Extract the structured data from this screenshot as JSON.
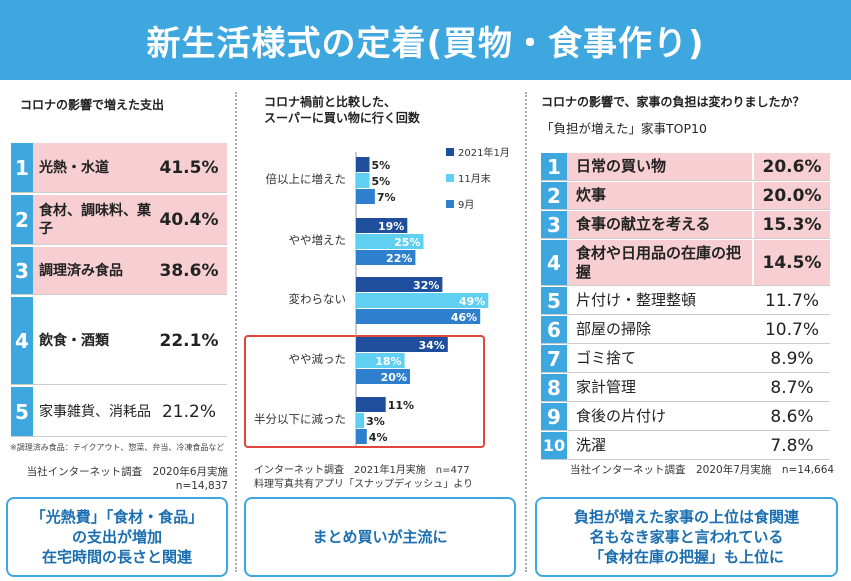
{
  "title": "新生活様式の定着(買物・食事作り)",
  "left": {
    "heading": "コロナの影響で増えた支出",
    "items": [
      {
        "rank": "1",
        "label": "光熱・水道",
        "value": "41.5%"
      },
      {
        "rank": "2",
        "label": "食材、調味料、菓子",
        "value": "40.4%"
      },
      {
        "rank": "3",
        "label": "調理済み食品",
        "value": "38.6%"
      },
      {
        "rank": "4",
        "label": "飲食・酒類",
        "value": "22.1%"
      },
      {
        "rank": "5",
        "label": "家事雑貨、消耗品",
        "value": "21.2%"
      }
    ],
    "note": "※調理済み食品：テイクアウト、惣菜、弁当、冷凍食品など",
    "source_line1": "当社インターネット調査　2020年6月実施",
    "source_line2": "n=14,837",
    "callout": [
      "「光熱費」「食材・食品」",
      "の支出が増加",
      "在宅時間の長さと関連"
    ]
  },
  "center": {
    "heading_line1": "コロナ禍前と比較した、",
    "heading_line2": "スーパーに買い物に行く回数",
    "source_line1": "インターネット調査　2021年1月実施　n=477",
    "source_line2": "料理写真共有アプリ「スナップディッシュ」より",
    "callout": "まとめ買いが主流に"
  },
  "right": {
    "heading": "コロナの影響で、家事の負担は変わりましたか？",
    "subheading": "「負担が増えた」家事TOP10",
    "items": [
      {
        "rank": "1",
        "label": "日常の買い物",
        "value": "20.6%"
      },
      {
        "rank": "2",
        "label": "炊事",
        "value": "20.0%"
      },
      {
        "rank": "3",
        "label": "食事の献立を考える",
        "value": "15.3%"
      },
      {
        "rank": "4",
        "label": "食材や日用品の在庫の把握",
        "value": "14.5%"
      },
      {
        "rank": "5",
        "label": "片付け・整理整頓",
        "value": "11.7%"
      },
      {
        "rank": "6",
        "label": "部屋の掃除",
        "value": "10.7%"
      },
      {
        "rank": "7",
        "label": "ゴミ捨て",
        "value": "8.9%"
      },
      {
        "rank": "8",
        "label": "家計管理",
        "value": "8.7%"
      },
      {
        "rank": "9",
        "label": "食後の片付け",
        "value": "8.6%"
      },
      {
        "rank": "10",
        "label": "洗濯",
        "value": "7.8%"
      }
    ],
    "source": "当社インターネット調査　2020年7月実施　n=14,664",
    "callout": [
      "負担が増えた家事の上位は食関連",
      "名もなき家事と言われている",
      "「食材在庫の把握」も上位に"
    ]
  },
  "chart_data": {
    "type": "bar",
    "orientation": "horizontal",
    "title": "コロナ禍前と比較した、スーパーに買い物に行く回数",
    "categories": [
      "倍以上に増えた",
      "やや増えた",
      "変わらない",
      "やや減った",
      "半分以下に減った"
    ],
    "series": [
      {
        "name": "2021年1月",
        "values": [
          5,
          19,
          32,
          34,
          11
        ],
        "color": "#1f4e9c"
      },
      {
        "name": "11月末",
        "values": [
          5,
          25,
          49,
          18,
          3
        ],
        "color": "#5fd0f2"
      },
      {
        "name": "9月",
        "values": [
          7,
          22,
          46,
          20,
          4
        ],
        "color": "#2f7fcf"
      }
    ],
    "unit": "%",
    "xlim": [
      0,
      50
    ],
    "legend": "top-right",
    "highlight": [
      "やや減った",
      "半分以下に減った"
    ]
  }
}
